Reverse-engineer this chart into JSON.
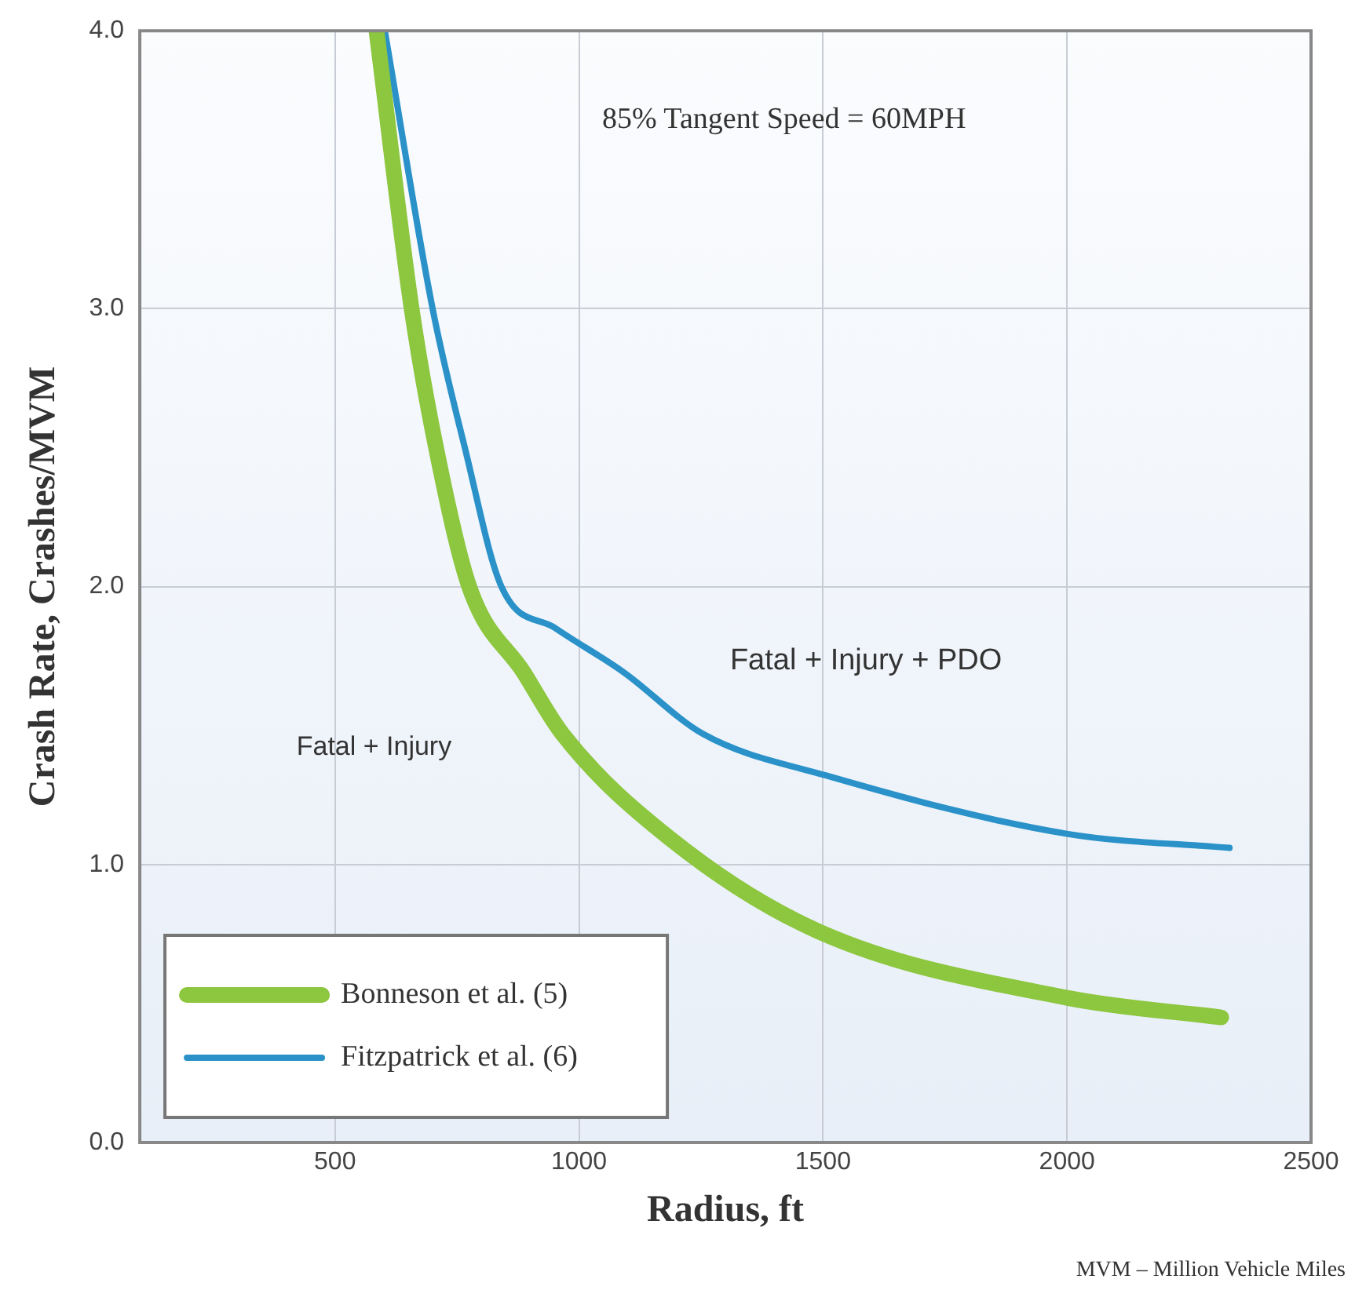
{
  "chart_data": {
    "type": "line",
    "xlabel": "Radius, ft",
    "ylabel": "Crash Rate, Crashes/MVM",
    "xlim": [
      100,
      2500
    ],
    "xticks": [
      500,
      1000,
      1500,
      2000,
      2500
    ],
    "ylim": [
      0,
      4
    ],
    "yticks": [
      {
        "value": 0,
        "label": "0.0"
      },
      {
        "value": 1,
        "label": "1.0"
      },
      {
        "value": 2,
        "label": "2.0"
      },
      {
        "value": 3,
        "label": "3.0"
      },
      {
        "value": 4,
        "label": "4.0"
      }
    ],
    "grid": true,
    "legend": "bottom left",
    "marker": "none",
    "line_style": "solid",
    "series": [
      {
        "name": "Bonneson et al. (5)",
        "color": "#8dc63f",
        "x": [
          585,
          657,
          707,
          775,
          887,
          966,
          1189,
          1490,
          2002,
          2316
        ],
        "values": [
          4.0,
          3.0,
          2.5,
          2.0,
          1.69,
          1.47,
          1.09,
          0.76,
          0.52,
          0.45
        ]
      },
      {
        "name": "Fitzpatrick et al. (6)",
        "color": "#2a92c8",
        "x": [
          602,
          700,
          766,
          841,
          952,
          1093,
          1254,
          1507,
          2002,
          2333
        ],
        "values": [
          4.0,
          3.0,
          2.5,
          2.0,
          1.85,
          1.69,
          1.47,
          1.32,
          1.11,
          1.06
        ]
      }
    ],
    "annotations": [
      "85% Tangent Speed = 60MPH",
      "Fatal + Injury",
      "Fatal + Injury + PDO",
      "MVM – Million Vehicle Miles"
    ]
  }
}
